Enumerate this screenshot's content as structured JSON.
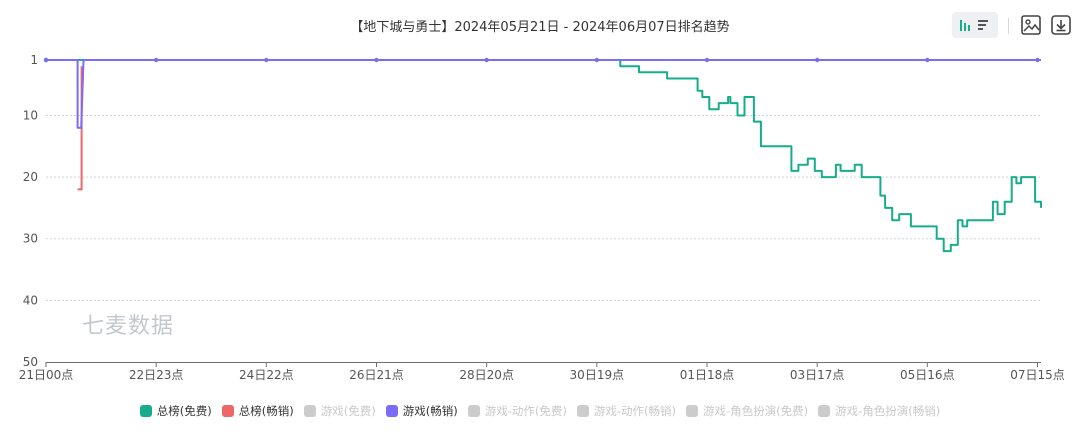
{
  "chart_data": {
    "type": "line",
    "title": "【地下城与勇士】2024年05月21日 - 2024年06月07日排名趋势",
    "xlabel": "",
    "ylabel": "",
    "x_range": [
      0,
      408
    ],
    "ylim": [
      1,
      50
    ],
    "y_inverted": true,
    "y_ticks": [
      "1",
      "10",
      "20",
      "30",
      "40",
      "50"
    ],
    "x_ticks": [
      {
        "hour": 0,
        "label": "21日00点"
      },
      {
        "hour": 47,
        "label": "22日23点"
      },
      {
        "hour": 94,
        "label": "24日22点"
      },
      {
        "hour": 141,
        "label": "26日21点"
      },
      {
        "hour": 188,
        "label": "28日20点"
      },
      {
        "hour": 235,
        "label": "30日19点"
      },
      {
        "hour": 282,
        "label": "01日18点"
      },
      {
        "hour": 329,
        "label": "03日17点"
      },
      {
        "hour": 376,
        "label": "05日16点"
      },
      {
        "hour": 423,
        "label": "07日15点"
      }
    ],
    "grid": true,
    "legend_position": "bottom",
    "series": [
      {
        "name": "总榜(免费)",
        "color": "#15ad8c",
        "step": true,
        "markers": [
          0
        ],
        "points": [
          [
            0,
            1
          ],
          [
            244,
            1
          ],
          [
            245,
            2
          ],
          [
            252,
            2
          ],
          [
            253,
            3
          ],
          [
            264,
            3
          ],
          [
            265,
            4
          ],
          [
            277,
            4
          ],
          [
            278,
            6
          ],
          [
            279,
            6
          ],
          [
            280,
            7
          ],
          [
            282,
            7
          ],
          [
            283,
            9
          ],
          [
            286,
            9
          ],
          [
            287,
            8
          ],
          [
            290,
            8
          ],
          [
            291,
            7
          ],
          [
            292,
            8
          ],
          [
            294,
            8
          ],
          [
            295,
            10
          ],
          [
            297,
            10
          ],
          [
            298,
            7
          ],
          [
            301,
            7
          ],
          [
            302,
            11
          ],
          [
            304,
            11
          ],
          [
            305,
            15
          ],
          [
            317,
            15
          ],
          [
            318,
            19
          ],
          [
            320,
            19
          ],
          [
            321,
            18
          ],
          [
            324,
            18
          ],
          [
            325,
            17
          ],
          [
            327,
            17
          ],
          [
            328,
            19
          ],
          [
            330,
            19
          ],
          [
            331,
            20
          ],
          [
            336,
            20
          ],
          [
            337,
            18
          ],
          [
            338,
            18
          ],
          [
            339,
            19
          ],
          [
            344,
            19
          ],
          [
            345,
            18
          ],
          [
            347,
            18
          ],
          [
            348,
            20
          ],
          [
            355,
            20
          ],
          [
            356,
            23
          ],
          [
            357,
            23
          ],
          [
            358,
            25
          ],
          [
            360,
            25
          ],
          [
            361,
            27
          ],
          [
            363,
            27
          ],
          [
            364,
            26
          ],
          [
            368,
            26
          ],
          [
            369,
            28
          ],
          [
            379,
            28
          ],
          [
            380,
            30
          ],
          [
            382,
            30
          ],
          [
            383,
            32
          ],
          [
            385,
            32
          ],
          [
            386,
            31
          ],
          [
            388,
            31
          ],
          [
            389,
            27
          ],
          [
            390,
            27
          ],
          [
            391,
            28
          ],
          [
            392,
            28
          ],
          [
            393,
            27
          ],
          [
            403,
            27
          ],
          [
            404,
            24
          ],
          [
            405,
            24
          ],
          [
            406,
            26
          ],
          [
            408,
            26
          ],
          [
            409,
            24
          ],
          [
            411,
            24
          ],
          [
            412,
            20
          ],
          [
            413,
            20
          ],
          [
            414,
            21
          ],
          [
            415,
            21
          ],
          [
            416,
            20
          ],
          [
            421,
            20
          ],
          [
            422,
            24
          ],
          [
            424,
            24
          ],
          [
            424.5,
            25
          ]
        ]
      },
      {
        "name": "总榜(畅销)",
        "color": "#ee6666",
        "step": true,
        "markers": [],
        "points": [
          [
            13.5,
            22
          ],
          [
            14.8,
            22
          ],
          [
            15.2,
            2
          ]
        ]
      },
      {
        "name": "游戏(免费)",
        "color": "#cccccc",
        "disabled": true,
        "points": []
      },
      {
        "name": "游戏(畅销)",
        "color": "#7b6cf6",
        "step": false,
        "markers": [
          0,
          47,
          94,
          141,
          188,
          235,
          282,
          329,
          376,
          423
        ],
        "points": [
          [
            0,
            1
          ],
          [
            13.5,
            1
          ],
          [
            13.5,
            12
          ],
          [
            15,
            12
          ],
          [
            16,
            1
          ],
          [
            423,
            1
          ],
          [
            424.5,
            1
          ]
        ]
      },
      {
        "name": "游戏-动作(免费)",
        "color": "#cccccc",
        "disabled": true,
        "points": []
      },
      {
        "name": "游戏-动作(畅销)",
        "color": "#cccccc",
        "disabled": true,
        "points": []
      },
      {
        "name": "游戏-角色扮演(免费)",
        "color": "#cccccc",
        "disabled": true,
        "points": []
      },
      {
        "name": "游戏-角色扮演(畅销)",
        "color": "#cccccc",
        "disabled": true,
        "points": []
      }
    ],
    "watermark": "七麦数据"
  }
}
